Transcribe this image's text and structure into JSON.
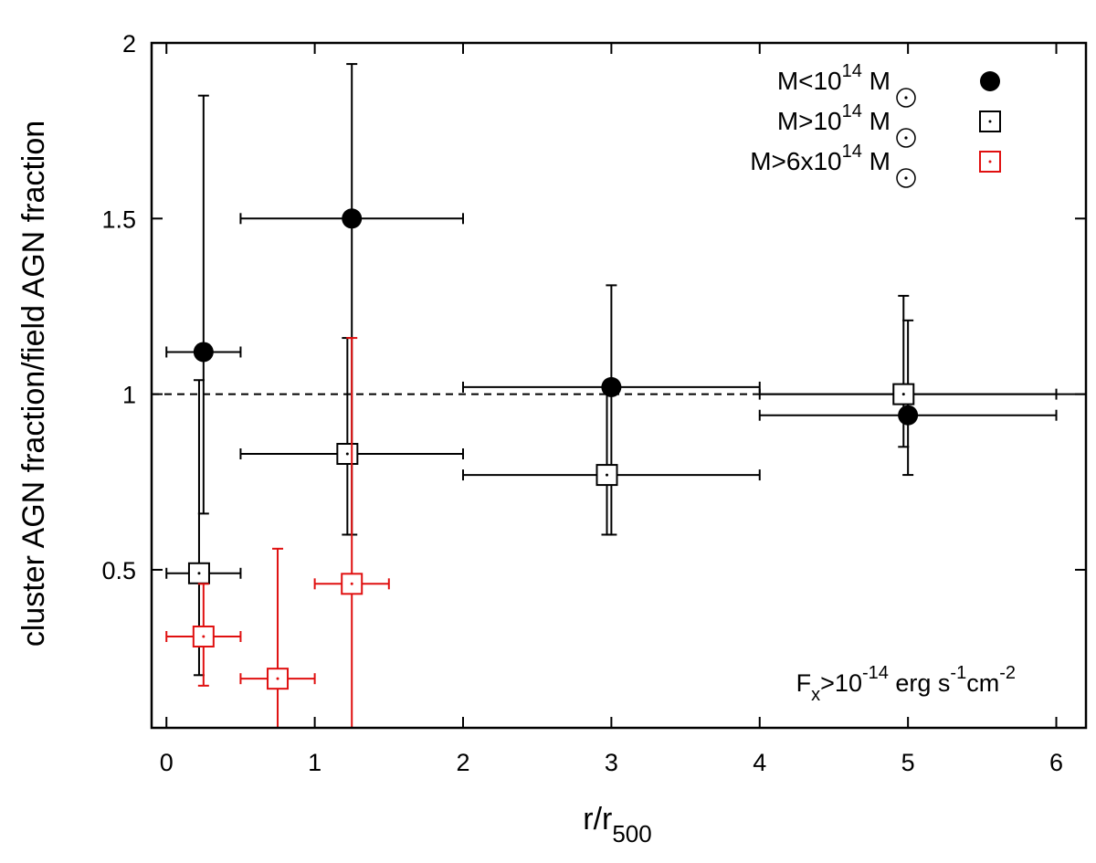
{
  "chart_data": {
    "type": "scatter",
    "xlabel": "r/r",
    "xlabel_sub": "500",
    "ylabel": "cluster AGN fraction/field AGN fraction",
    "xlim": [
      -0.1,
      6.2
    ],
    "ylim": [
      0.05,
      2.0
    ],
    "xticks": [
      0,
      1,
      2,
      3,
      4,
      5,
      6
    ],
    "xtick_labels": [
      "0",
      "1",
      "2",
      "3",
      "4",
      "5",
      "6"
    ],
    "yticks": [
      0.5,
      1.0,
      1.5,
      2.0
    ],
    "ytick_labels": [
      "0.5",
      "1",
      "1.5",
      "2"
    ],
    "reference_line": {
      "y": 1.0,
      "style": "dashed-then-solid"
    },
    "annotation": {
      "base": "F",
      "sub": "x",
      "part1": ">10",
      "exp1": "-14",
      "part2": " erg s",
      "exp2": "-1",
      "part3": "cm",
      "exp3": "-2"
    },
    "legend_position": "top-right",
    "series": [
      {
        "name": "M<10^14 M⊙",
        "legend_base": "M<10",
        "legend_exp": "14",
        "legend_unit": "M",
        "marker": "filled-circle",
        "color": "#000000",
        "points": [
          {
            "x": 0.25,
            "y": 1.12,
            "xlo": 0.0,
            "xhi": 0.5,
            "ylo": 0.66,
            "yhi": 1.85
          },
          {
            "x": 1.25,
            "y": 1.5,
            "xlo": 0.5,
            "xhi": 2.0,
            "ylo": 0.6,
            "yhi": 1.94
          },
          {
            "x": 3.0,
            "y": 1.02,
            "xlo": 2.0,
            "xhi": 4.0,
            "ylo": 0.6,
            "yhi": 1.31
          },
          {
            "x": 5.0,
            "y": 0.94,
            "xlo": 4.0,
            "xhi": 6.0,
            "ylo": 0.77,
            "yhi": 1.21
          }
        ]
      },
      {
        "name": "M>10^14 M⊙",
        "legend_base": "M>10",
        "legend_exp": "14",
        "legend_unit": "M",
        "marker": "open-square",
        "color": "#000000",
        "points": [
          {
            "x": 0.22,
            "y": 0.49,
            "xlo": 0.0,
            "xhi": 0.5,
            "ylo": 0.2,
            "yhi": 1.04
          },
          {
            "x": 1.22,
            "y": 0.83,
            "xlo": 0.5,
            "xhi": 2.0,
            "ylo": 0.6,
            "yhi": 1.16
          },
          {
            "x": 2.97,
            "y": 0.77,
            "xlo": 2.0,
            "xhi": 4.0,
            "ylo": 0.6,
            "yhi": 1.02
          },
          {
            "x": 4.97,
            "y": 1.0,
            "xlo": 4.0,
            "xhi": 6.0,
            "ylo": 0.85,
            "yhi": 1.28
          }
        ]
      },
      {
        "name": "M>6x10^14 M⊙",
        "legend_base": "M>6x10",
        "legend_exp": "14",
        "legend_unit": "M",
        "marker": "open-square",
        "color": "#e01010",
        "points": [
          {
            "x": 0.25,
            "y": 0.31,
            "xlo": 0.0,
            "xhi": 0.5,
            "ylo": 0.17,
            "yhi": 0.46
          },
          {
            "x": 0.75,
            "y": 0.19,
            "xlo": 0.5,
            "xhi": 1.0,
            "ylo": 0.05,
            "yhi": 0.56
          },
          {
            "x": 1.25,
            "y": 0.46,
            "xlo": 1.0,
            "xhi": 1.5,
            "ylo": 0.05,
            "yhi": 1.16
          }
        ]
      }
    ]
  }
}
